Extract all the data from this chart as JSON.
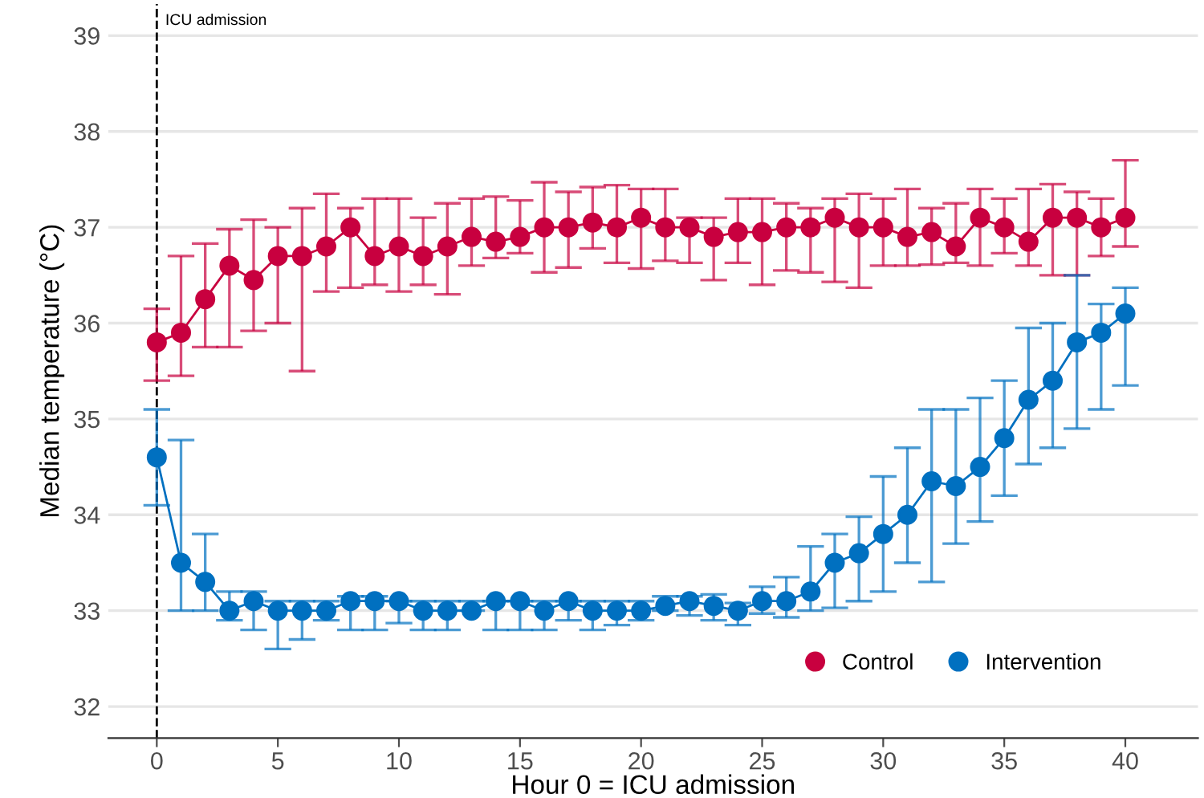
{
  "chart_data": {
    "type": "line",
    "xlabel": "Hour 0 = ICU admission",
    "ylabel": "Median temperature (°C)",
    "x": [
      0,
      1,
      2,
      3,
      4,
      5,
      6,
      7,
      8,
      9,
      10,
      11,
      12,
      13,
      14,
      15,
      16,
      17,
      18,
      19,
      20,
      21,
      22,
      23,
      24,
      25,
      26,
      27,
      28,
      29,
      30,
      31,
      32,
      33,
      34,
      35,
      36,
      37,
      38,
      39,
      40
    ],
    "series": [
      {
        "name": "Control",
        "color": "#c8003f",
        "values": [
          35.8,
          35.9,
          36.25,
          36.6,
          36.45,
          36.7,
          36.7,
          36.8,
          37.0,
          36.7,
          36.8,
          36.7,
          36.8,
          36.9,
          36.85,
          36.9,
          37.0,
          37.0,
          37.05,
          37.0,
          37.1,
          37.0,
          37.0,
          36.9,
          36.95,
          36.95,
          37.0,
          37.0,
          37.1,
          37.0,
          37.0,
          36.9,
          36.95,
          36.8,
          37.1,
          37.0,
          36.85,
          37.1,
          37.1,
          37.0,
          37.1
        ],
        "errors": [
          [
            35.4,
            36.15
          ],
          [
            35.45,
            36.7
          ],
          [
            35.75,
            36.83
          ],
          [
            35.75,
            36.98
          ],
          [
            35.92,
            37.08
          ],
          [
            36.0,
            37.0
          ],
          [
            35.5,
            37.2
          ],
          [
            36.33,
            37.35
          ],
          [
            36.37,
            37.2
          ],
          [
            36.4,
            37.3
          ],
          [
            36.33,
            37.3
          ],
          [
            36.4,
            37.1
          ],
          [
            36.3,
            37.25
          ],
          [
            36.6,
            37.3
          ],
          [
            36.68,
            37.32
          ],
          [
            36.73,
            37.28
          ],
          [
            36.53,
            37.47
          ],
          [
            36.58,
            37.37
          ],
          [
            36.78,
            37.42
          ],
          [
            36.63,
            37.44
          ],
          [
            36.57,
            37.4
          ],
          [
            36.65,
            37.4
          ],
          [
            36.63,
            37.1
          ],
          [
            36.45,
            37.1
          ],
          [
            36.63,
            37.3
          ],
          [
            36.4,
            37.3
          ],
          [
            36.55,
            37.25
          ],
          [
            36.53,
            37.2
          ],
          [
            36.43,
            37.3
          ],
          [
            36.37,
            37.35
          ],
          [
            36.6,
            37.3
          ],
          [
            36.6,
            37.4
          ],
          [
            36.61,
            37.2
          ],
          [
            36.63,
            37.25
          ],
          [
            36.6,
            37.4
          ],
          [
            36.73,
            37.3
          ],
          [
            36.6,
            37.4
          ],
          [
            36.5,
            37.45
          ],
          [
            36.5,
            37.37
          ],
          [
            36.7,
            37.3
          ],
          [
            36.8,
            37.7
          ]
        ]
      },
      {
        "name": "Intervention",
        "color": "#0070c0",
        "values": [
          34.6,
          33.5,
          33.3,
          33.0,
          33.1,
          33.0,
          33.0,
          33.0,
          33.1,
          33.1,
          33.1,
          33.0,
          33.0,
          33.0,
          33.1,
          33.1,
          33.0,
          33.1,
          33.0,
          33.0,
          33.0,
          33.05,
          33.1,
          33.05,
          33.0,
          33.1,
          33.1,
          33.2,
          33.5,
          33.6,
          33.8,
          34.0,
          34.35,
          34.3,
          34.5,
          34.8,
          35.2,
          35.4,
          35.8,
          35.9,
          36.1
        ],
        "errors": [
          [
            34.1,
            35.1
          ],
          [
            33.0,
            34.78
          ],
          [
            33.0,
            33.8
          ],
          [
            32.9,
            33.2
          ],
          [
            32.8,
            33.2
          ],
          [
            32.6,
            33.1
          ],
          [
            32.7,
            33.1
          ],
          [
            32.9,
            33.1
          ],
          [
            32.8,
            33.15
          ],
          [
            32.8,
            33.15
          ],
          [
            32.87,
            33.1
          ],
          [
            32.8,
            33.1
          ],
          [
            32.8,
            33.1
          ],
          [
            33.0,
            33.1
          ],
          [
            32.8,
            33.1
          ],
          [
            32.8,
            33.1
          ],
          [
            32.8,
            33.1
          ],
          [
            32.9,
            33.1
          ],
          [
            32.8,
            33.1
          ],
          [
            32.85,
            33.1
          ],
          [
            32.9,
            33.1
          ],
          [
            33.0,
            33.15
          ],
          [
            32.95,
            33.15
          ],
          [
            32.9,
            33.17
          ],
          [
            32.85,
            33.08
          ],
          [
            32.97,
            33.25
          ],
          [
            32.93,
            33.35
          ],
          [
            33.0,
            33.67
          ],
          [
            33.03,
            33.8
          ],
          [
            33.1,
            33.98
          ],
          [
            33.2,
            34.4
          ],
          [
            33.5,
            34.7
          ],
          [
            33.3,
            35.1
          ],
          [
            33.7,
            35.1
          ],
          [
            33.93,
            35.22
          ],
          [
            34.2,
            35.4
          ],
          [
            34.53,
            35.95
          ],
          [
            34.7,
            36.0
          ],
          [
            34.9,
            36.5
          ],
          [
            35.1,
            36.2
          ],
          [
            35.35,
            36.37
          ]
        ]
      }
    ],
    "xlim": [
      -2,
      43
    ],
    "ylim": [
      31.67,
      39.33
    ],
    "xticks": [
      0,
      5,
      10,
      15,
      20,
      25,
      30,
      35,
      40
    ],
    "yticks": [
      32,
      33,
      34,
      35,
      36,
      37,
      38,
      39
    ],
    "ref_lines": [
      {
        "axis": "x",
        "value": 0,
        "label": "ICU admission",
        "line_style": "dashed",
        "color": "#000000"
      }
    ],
    "grid": "y",
    "legend": "bottom right",
    "marker": "circle",
    "line_style": "solid"
  }
}
